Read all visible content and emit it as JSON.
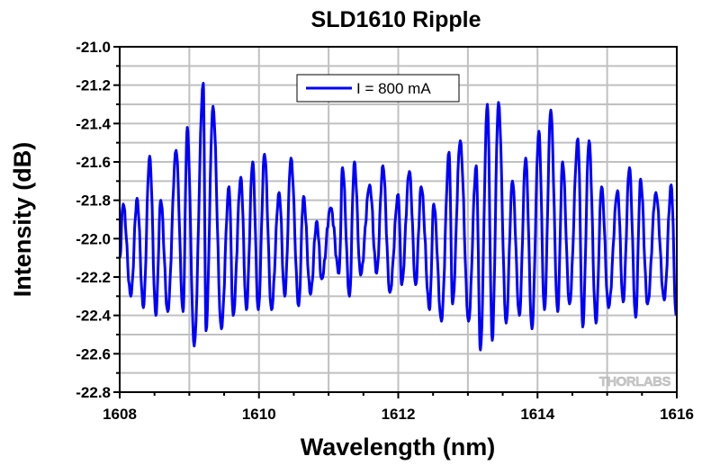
{
  "chart_data": {
    "type": "line",
    "title": "SLD1610 Ripple",
    "xlabel": "Wavelength (nm)",
    "ylabel": "Intensity (dB)",
    "xlim": [
      1608,
      1616
    ],
    "ylim": [
      -22.8,
      -21.0
    ],
    "xticks": [
      "1608",
      "1610",
      "1612",
      "1614",
      "1616"
    ],
    "yticks": [
      "-21.0",
      "-21.2",
      "-21.4",
      "-21.6",
      "-21.8",
      "-22.0",
      "-22.2",
      "-22.4",
      "-22.6",
      "-22.8"
    ],
    "grid": true,
    "legend_position": "top-center",
    "watermark": "THORLABS",
    "series": [
      {
        "name": "I = 800 mA",
        "color": "#0000ff",
        "note": "local extrema of the ripple trace",
        "points": [
          [
            1608.0,
            -22.1
          ],
          [
            1608.05,
            -21.82
          ],
          [
            1608.16,
            -22.3
          ],
          [
            1608.25,
            -21.79
          ],
          [
            1608.34,
            -22.36
          ],
          [
            1608.43,
            -21.57
          ],
          [
            1608.52,
            -22.4
          ],
          [
            1608.59,
            -21.8
          ],
          [
            1608.69,
            -22.38
          ],
          [
            1608.81,
            -21.54
          ],
          [
            1608.91,
            -22.38
          ],
          [
            1608.97,
            -21.42
          ],
          [
            1609.07,
            -22.56
          ],
          [
            1609.2,
            -21.19
          ],
          [
            1609.24,
            -22.48
          ],
          [
            1609.34,
            -21.31
          ],
          [
            1609.46,
            -22.47
          ],
          [
            1609.57,
            -21.73
          ],
          [
            1609.63,
            -22.4
          ],
          [
            1609.74,
            -21.68
          ],
          [
            1609.82,
            -22.37
          ],
          [
            1609.91,
            -21.6
          ],
          [
            1609.99,
            -22.37
          ],
          [
            1610.08,
            -21.56
          ],
          [
            1610.18,
            -22.37
          ],
          [
            1610.29,
            -21.76
          ],
          [
            1610.37,
            -22.3
          ],
          [
            1610.46,
            -21.58
          ],
          [
            1610.57,
            -22.35
          ],
          [
            1610.64,
            -21.78
          ],
          [
            1610.74,
            -22.29
          ],
          [
            1610.83,
            -21.91
          ],
          [
            1610.9,
            -22.21
          ],
          [
            1611.03,
            -21.84
          ],
          [
            1611.15,
            -22.18
          ],
          [
            1611.2,
            -21.63
          ],
          [
            1611.3,
            -22.3
          ],
          [
            1611.37,
            -21.6
          ],
          [
            1611.46,
            -22.19
          ],
          [
            1611.59,
            -21.72
          ],
          [
            1611.69,
            -22.18
          ],
          [
            1611.78,
            -21.62
          ],
          [
            1611.88,
            -22.28
          ],
          [
            1612.0,
            -21.77
          ],
          [
            1612.05,
            -22.24
          ],
          [
            1612.16,
            -21.65
          ],
          [
            1612.25,
            -22.24
          ],
          [
            1612.33,
            -21.73
          ],
          [
            1612.45,
            -22.37
          ],
          [
            1612.51,
            -21.82
          ],
          [
            1612.62,
            -22.43
          ],
          [
            1612.73,
            -21.55
          ],
          [
            1612.78,
            -22.34
          ],
          [
            1612.89,
            -21.49
          ],
          [
            1613.01,
            -22.43
          ],
          [
            1613.12,
            -21.62
          ],
          [
            1613.18,
            -22.58
          ],
          [
            1613.28,
            -21.3
          ],
          [
            1613.35,
            -22.53
          ],
          [
            1613.44,
            -21.29
          ],
          [
            1613.55,
            -22.44
          ],
          [
            1613.64,
            -21.7
          ],
          [
            1613.74,
            -22.4
          ],
          [
            1613.83,
            -21.58
          ],
          [
            1613.92,
            -22.47
          ],
          [
            1614.02,
            -21.44
          ],
          [
            1614.1,
            -22.37
          ],
          [
            1614.19,
            -21.33
          ],
          [
            1614.29,
            -22.38
          ],
          [
            1614.36,
            -21.6
          ],
          [
            1614.46,
            -22.34
          ],
          [
            1614.58,
            -21.48
          ],
          [
            1614.65,
            -22.46
          ],
          [
            1614.74,
            -21.49
          ],
          [
            1614.84,
            -22.44
          ],
          [
            1614.92,
            -21.73
          ],
          [
            1615.02,
            -22.36
          ],
          [
            1615.15,
            -21.75
          ],
          [
            1615.23,
            -22.33
          ],
          [
            1615.32,
            -21.63
          ],
          [
            1615.41,
            -22.41
          ],
          [
            1615.48,
            -21.69
          ],
          [
            1615.58,
            -22.34
          ],
          [
            1615.7,
            -21.76
          ],
          [
            1615.82,
            -22.32
          ],
          [
            1615.92,
            -21.72
          ],
          [
            1615.99,
            -22.4
          ]
        ]
      }
    ]
  }
}
